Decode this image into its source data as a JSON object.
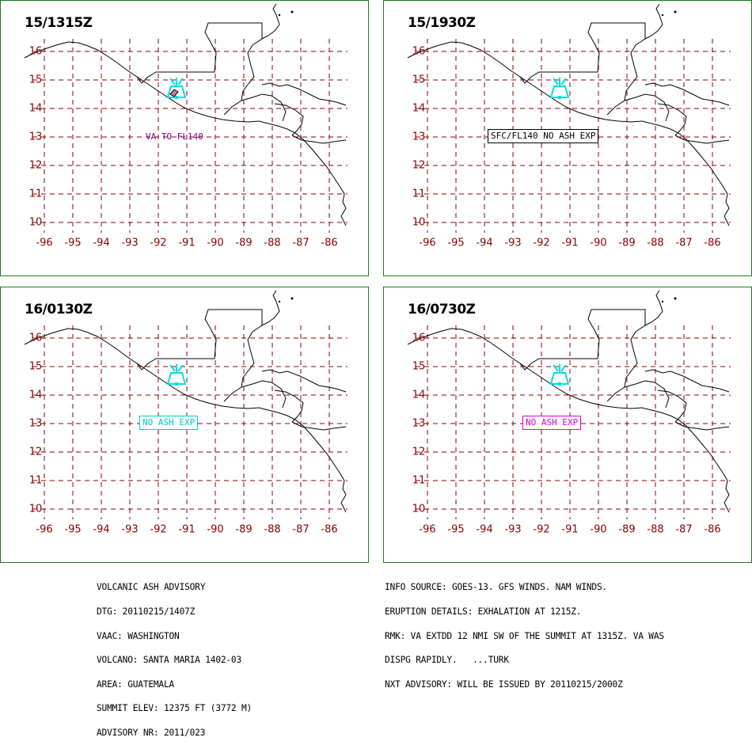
{
  "colors": {
    "frame": "#1f7a1f",
    "grid": "#8b0000",
    "coast": "#000000",
    "volcano": "#00e0e0",
    "label_purple": "#800080",
    "label_cyan": "#00c8c8",
    "label_magenta": "#d000d0"
  },
  "axes": {
    "lat_labels": [
      "16",
      "15",
      "14",
      "13",
      "12",
      "11",
      "10"
    ],
    "lon_labels": [
      "-96",
      "-95",
      "-94",
      "-93",
      "-92",
      "-91",
      "-90",
      "-89",
      "-88",
      "-87",
      "-86"
    ]
  },
  "panels": [
    {
      "time": "15/1315Z",
      "note": "VA TO FL140",
      "note_style": "plain"
    },
    {
      "time": "15/1930Z",
      "note": "SFC/FL140 NO ASH EXP",
      "note_style": "black"
    },
    {
      "time": "16/0130Z",
      "note": "NO ASH EXP",
      "note_style": "cyan"
    },
    {
      "time": "16/0730Z",
      "note": "NO ASH EXP",
      "note_style": "magenta"
    }
  ],
  "advisory_left": [
    "VOLCANIC ASH ADVISORY",
    "DTG: 20110215/1407Z",
    "VAAC: WASHINGTON",
    "VOLCANO: SANTA MARIA 1402-03",
    "AREA: GUATEMALA",
    "SUMMIT ELEV: 12375 FT (3772 M)",
    "ADVISORY NR: 2011/023"
  ],
  "advisory_right": [
    "INFO SOURCE: GOES-13. GFS WINDS. NAM WINDS.",
    "ERUPTION DETAILS: EXHALATION AT 1215Z.",
    "RMK: VA EXTDD 12 NMI SW OF THE SUMMIT AT 1315Z. VA WAS",
    "DISPG RAPIDLY.   ...TURK",
    "NXT ADVISORY: WILL BE ISSUED BY 20110215/2000Z"
  ]
}
